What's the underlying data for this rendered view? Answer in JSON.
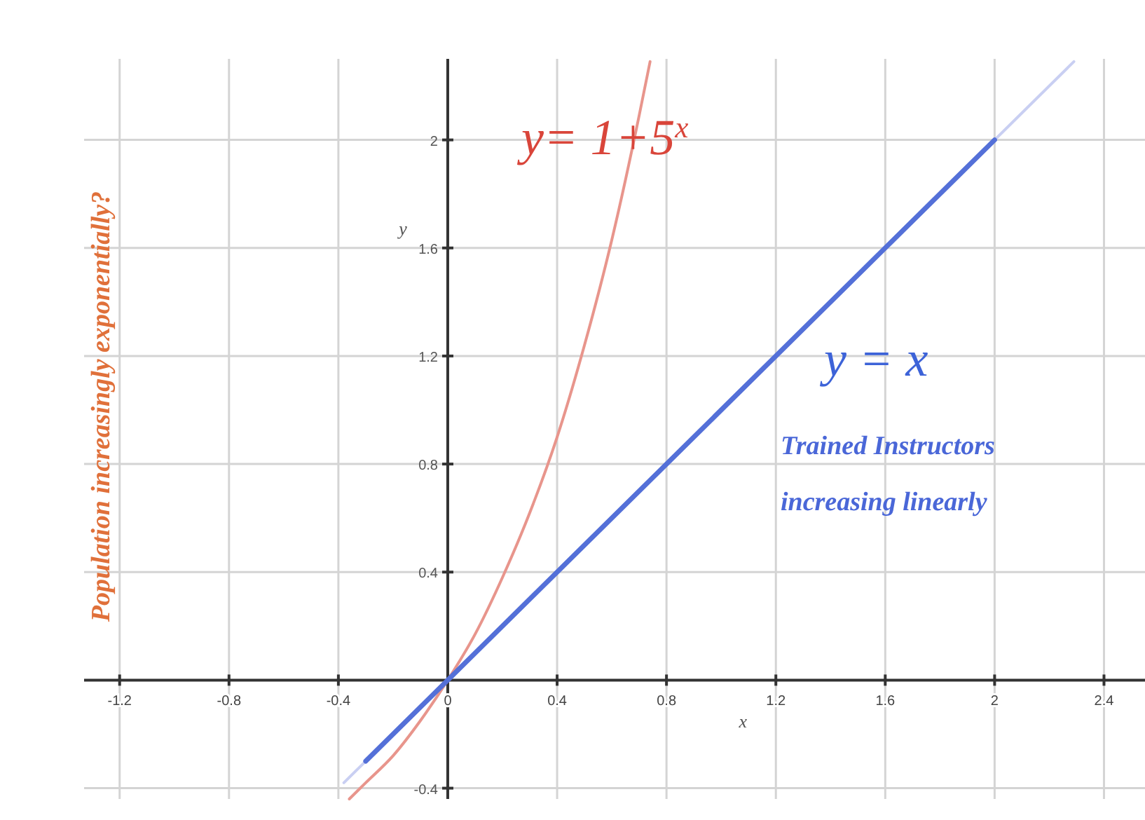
{
  "chart_data": {
    "type": "line",
    "xlabel": "x",
    "ylabel": "y",
    "xlim": [
      -1.33,
      2.55
    ],
    "ylim": [
      -0.44,
      2.3
    ],
    "xticks": [
      -1.2,
      -0.8,
      -0.4,
      0,
      0.4,
      0.8,
      1.2,
      1.6,
      2,
      2.4
    ],
    "yticks": [
      -0.4,
      0.4,
      0.8,
      1.2,
      1.6,
      2
    ],
    "grid": true,
    "line_style": "solid",
    "marker": "none",
    "series": [
      {
        "color": "#c9cff2",
        "x": [
          -0.38,
          2.29
        ],
        "values": [
          -0.38,
          2.29
        ]
      },
      {
        "color": "#e8958c",
        "x": [
          -0.36,
          -0.3,
          -0.2,
          -0.1,
          0,
          0.1,
          0.2,
          0.3,
          0.4,
          0.5,
          0.6,
          0.7,
          0.74
        ],
        "values": [
          -0.44,
          -0.38,
          -0.28,
          -0.15,
          0,
          0.17,
          0.38,
          0.62,
          0.9,
          1.24,
          1.63,
          2.09,
          2.29
        ]
      },
      {
        "color": "#5470d8",
        "x": [
          -0.3,
          2
        ],
        "values": [
          -0.3,
          2
        ]
      }
    ],
    "annotations": [
      "y= 1+5$^{x}$",
      "y = x",
      "Trained Instructors",
      "increasing linearly",
      "Population increasingly exponentially?"
    ]
  }
}
